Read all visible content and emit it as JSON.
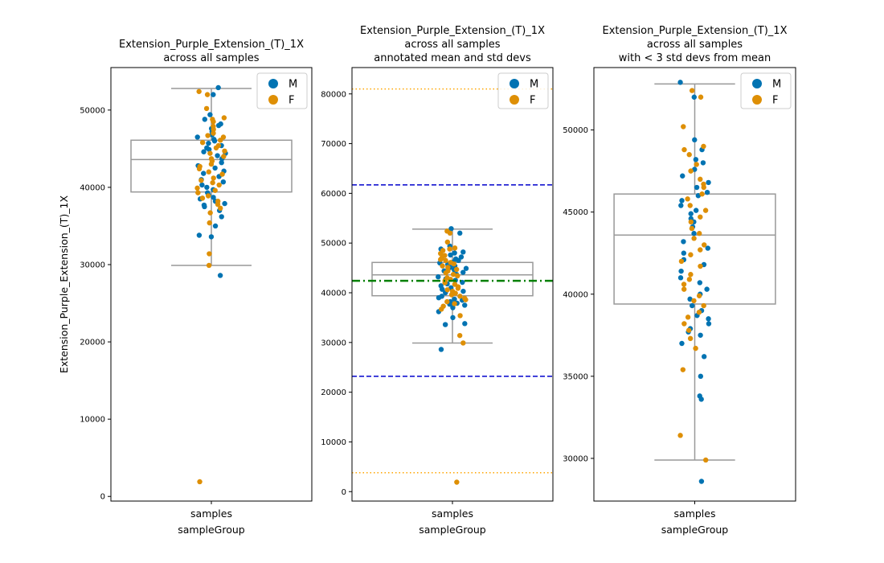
{
  "colors": {
    "M": "#0173b2",
    "F": "#de8f05",
    "box": "#999999",
    "mean": "#008000",
    "std1": "#0000cc",
    "std3": "#ffa500"
  },
  "chart_data": [
    {
      "type": "box-strip",
      "title_lines": [
        "Extension_Purple_Extension_(T)_1X",
        "across all samples"
      ],
      "xlabel": "sampleGroup",
      "ylabel": "Extension_Purple_Extension_(T)_1X",
      "categories": [
        "samples"
      ],
      "ylim": [
        -600,
        55500
      ],
      "yticks": [
        0,
        10000,
        20000,
        30000,
        40000,
        50000
      ],
      "legend": {
        "entries": [
          "M",
          "F"
        ],
        "position": "upper-right"
      },
      "box": {
        "whisker_low": 29900,
        "q1": 39400,
        "median": 43600,
        "q3": 46100,
        "whisker_high": 52800
      },
      "annotations": {
        "mean": null,
        "std1": null,
        "std3": null
      },
      "points": {
        "M": [
          52900,
          52000,
          49400,
          48800,
          48200,
          48000,
          47600,
          47200,
          46800,
          46500,
          46200,
          46000,
          45700,
          45400,
          45100,
          44900,
          44600,
          44400,
          44100,
          43700,
          43200,
          42800,
          42500,
          42100,
          41800,
          41400,
          41000,
          40700,
          40300,
          40000,
          39700,
          39300,
          39000,
          38700,
          38500,
          38200,
          37900,
          37700,
          37500,
          37000,
          36200,
          35000,
          33800,
          33600,
          28600
        ],
        "F": [
          52400,
          52000,
          50200,
          49000,
          48800,
          48500,
          47900,
          47500,
          47000,
          46700,
          46500,
          46100,
          45800,
          45400,
          45100,
          44700,
          44400,
          44000,
          43700,
          43400,
          43000,
          42700,
          42400,
          42000,
          41700,
          41200,
          40900,
          40600,
          40300,
          39900,
          39600,
          39300,
          38900,
          38600,
          38200,
          37800,
          37300,
          36700,
          35400,
          31400,
          29900,
          1900
        ]
      }
    },
    {
      "type": "box-strip",
      "title_lines": [
        "Extension_Purple_Extension_(T)_1X",
        "across all samples",
        "annotated mean and std devs"
      ],
      "xlabel": "sampleGroup",
      "ylabel": "",
      "categories": [
        "samples"
      ],
      "ylim": [
        -1900,
        85300
      ],
      "yticks": [
        0,
        10000,
        20000,
        30000,
        40000,
        50000,
        60000,
        70000,
        80000
      ],
      "legend": {
        "entries": [
          "M",
          "F"
        ],
        "position": "upper-right"
      },
      "box": {
        "whisker_low": 29900,
        "q1": 39400,
        "median": 43600,
        "q3": 46100,
        "whisker_high": 52800
      },
      "annotations": {
        "mean": 42400,
        "std1": [
          23200,
          61700
        ],
        "std3": [
          3800,
          81000
        ]
      },
      "points": {
        "M": [
          52900,
          52000,
          49400,
          48800,
          48200,
          48000,
          47600,
          47200,
          46800,
          46500,
          46200,
          46000,
          45700,
          45400,
          45100,
          44900,
          44600,
          44400,
          44100,
          43700,
          43200,
          42800,
          42500,
          42100,
          41800,
          41400,
          41000,
          40700,
          40300,
          40000,
          39700,
          39300,
          39000,
          38700,
          38500,
          38200,
          37900,
          37700,
          37500,
          37000,
          36200,
          35000,
          33800,
          33600,
          28600
        ],
        "F": [
          52400,
          52000,
          50200,
          49000,
          48800,
          48500,
          47900,
          47500,
          47000,
          46700,
          46500,
          46100,
          45800,
          45400,
          45100,
          44700,
          44400,
          44000,
          43700,
          43400,
          43000,
          42700,
          42400,
          42000,
          41700,
          41200,
          40900,
          40600,
          40300,
          39900,
          39600,
          39300,
          38900,
          38600,
          38200,
          37800,
          37300,
          36700,
          35400,
          31400,
          29900,
          1900
        ]
      }
    },
    {
      "type": "box-strip",
      "title_lines": [
        "Extension_Purple_Extension_(T)_1X",
        "across all samples",
        "with < 3 std devs from mean"
      ],
      "xlabel": "sampleGroup",
      "ylabel": "",
      "categories": [
        "samples"
      ],
      "ylim": [
        27400,
        53800
      ],
      "yticks": [
        30000,
        35000,
        40000,
        45000,
        50000
      ],
      "legend": {
        "entries": [
          "M",
          "F"
        ],
        "position": "upper-right"
      },
      "box": {
        "whisker_low": 29900,
        "q1": 39400,
        "median": 43600,
        "q3": 46100,
        "whisker_high": 52800
      },
      "annotations": {
        "mean": null,
        "std1": null,
        "std3": null
      },
      "points": {
        "M": [
          52900,
          52000,
          49400,
          48800,
          48200,
          48000,
          47600,
          47200,
          46800,
          46500,
          46200,
          46000,
          45700,
          45400,
          45100,
          44900,
          44600,
          44400,
          44100,
          43700,
          43200,
          42800,
          42500,
          42100,
          41800,
          41400,
          41000,
          40700,
          40300,
          40000,
          39700,
          39300,
          39000,
          38700,
          38500,
          38200,
          37900,
          37700,
          37500,
          37000,
          36200,
          35000,
          33800,
          33600,
          28600
        ],
        "F": [
          52400,
          52000,
          50200,
          49000,
          48800,
          48500,
          47900,
          47500,
          47000,
          46700,
          46500,
          46100,
          45800,
          45400,
          45100,
          44700,
          44400,
          44000,
          43700,
          43400,
          43000,
          42700,
          42400,
          42000,
          41700,
          41200,
          40900,
          40600,
          40300,
          39900,
          39600,
          39300,
          38900,
          38600,
          38200,
          37800,
          37300,
          36700,
          35400,
          31400,
          29900
        ]
      }
    }
  ]
}
